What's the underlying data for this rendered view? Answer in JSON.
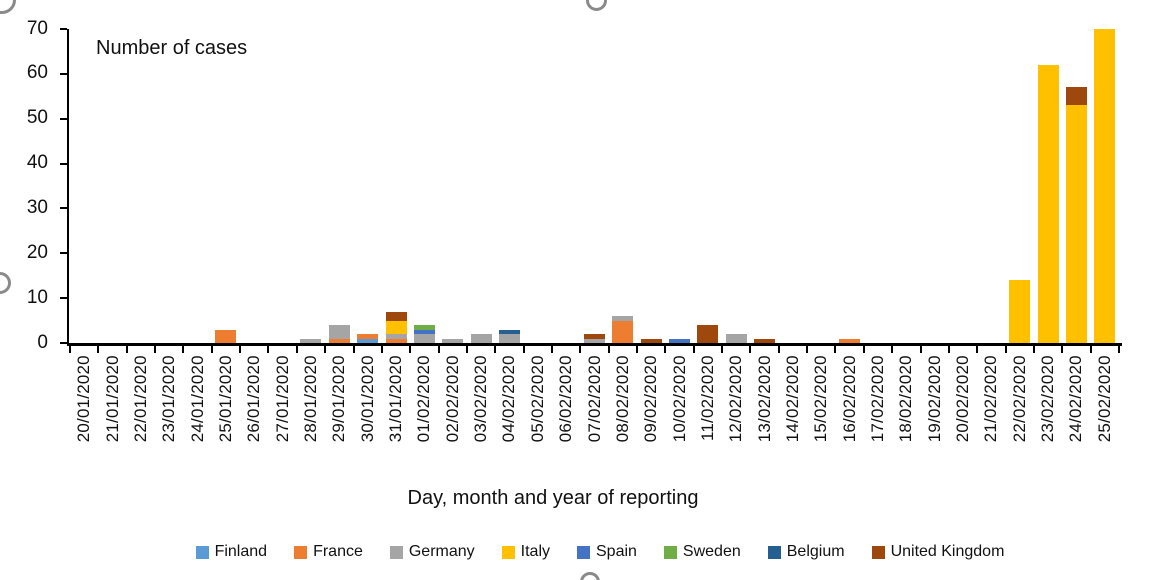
{
  "chart_data": {
    "type": "bar",
    "stacked": true,
    "inner_label": "Number of cases",
    "xlabel": "Day, month and year of reporting",
    "ylabel": "",
    "ylim": [
      0,
      70
    ],
    "yticks": [
      0,
      10,
      20,
      30,
      40,
      50,
      60,
      70
    ],
    "grid": false,
    "legend_position": "bottom",
    "categories": [
      "20/01/2020",
      "21/01/2020",
      "22/01/2020",
      "23/01/2020",
      "24/01/2020",
      "25/01/2020",
      "26/01/2020",
      "27/01/2020",
      "28/01/2020",
      "29/01/2020",
      "30/01/2020",
      "31/01/2020",
      "01/02/2020",
      "02/02/2020",
      "03/02/2020",
      "04/02/2020",
      "05/02/2020",
      "06/02/2020",
      "07/02/2020",
      "08/02/2020",
      "09/02/2020",
      "10/02/2020",
      "11/02/2020",
      "12/02/2020",
      "13/02/2020",
      "14/02/2020",
      "15/02/2020",
      "16/02/2020",
      "17/02/2020",
      "18/02/2020",
      "19/02/2020",
      "20/02/2020",
      "21/02/2020",
      "22/02/2020",
      "23/02/2020",
      "24/02/2020",
      "25/02/2020"
    ],
    "series": [
      {
        "name": "Finland",
        "color": "#5B9BD5",
        "values": [
          0,
          0,
          0,
          0,
          0,
          0,
          0,
          0,
          0,
          0,
          1,
          0,
          0,
          0,
          0,
          0,
          0,
          0,
          0,
          0,
          0,
          0,
          0,
          0,
          0,
          0,
          0,
          0,
          0,
          0,
          0,
          0,
          0,
          0,
          0,
          0,
          0
        ]
      },
      {
        "name": "France",
        "color": "#ED7D31",
        "values": [
          0,
          0,
          0,
          0,
          0,
          3,
          0,
          0,
          0,
          1,
          1,
          1,
          0,
          0,
          0,
          0,
          0,
          0,
          0,
          5,
          0,
          0,
          0,
          0,
          0,
          0,
          0,
          1,
          0,
          0,
          0,
          0,
          0,
          0,
          0,
          0,
          0
        ]
      },
      {
        "name": "Germany",
        "color": "#A5A5A5",
        "values": [
          0,
          0,
          0,
          0,
          0,
          0,
          0,
          0,
          1,
          3,
          0,
          1,
          2,
          1,
          2,
          2,
          0,
          0,
          1,
          1,
          0,
          0,
          0,
          2,
          0,
          0,
          0,
          0,
          0,
          0,
          0,
          0,
          0,
          0,
          0,
          0,
          0
        ]
      },
      {
        "name": "Italy",
        "color": "#FFC000",
        "values": [
          0,
          0,
          0,
          0,
          0,
          0,
          0,
          0,
          0,
          0,
          0,
          3,
          0,
          0,
          0,
          0,
          0,
          0,
          0,
          0,
          0,
          0,
          0,
          0,
          0,
          0,
          0,
          0,
          0,
          0,
          0,
          0,
          0,
          14,
          62,
          53,
          70
        ]
      },
      {
        "name": "Spain",
        "color": "#4472C4",
        "values": [
          0,
          0,
          0,
          0,
          0,
          0,
          0,
          0,
          0,
          0,
          0,
          0,
          1,
          0,
          0,
          0,
          0,
          0,
          0,
          0,
          0,
          1,
          0,
          0,
          0,
          0,
          0,
          0,
          0,
          0,
          0,
          0,
          0,
          0,
          0,
          0,
          0
        ]
      },
      {
        "name": "Sweden",
        "color": "#70AD47",
        "values": [
          0,
          0,
          0,
          0,
          0,
          0,
          0,
          0,
          0,
          0,
          0,
          0,
          1,
          0,
          0,
          0,
          0,
          0,
          0,
          0,
          0,
          0,
          0,
          0,
          0,
          0,
          0,
          0,
          0,
          0,
          0,
          0,
          0,
          0,
          0,
          0,
          0
        ]
      },
      {
        "name": "Belgium",
        "color": "#255E91",
        "values": [
          0,
          0,
          0,
          0,
          0,
          0,
          0,
          0,
          0,
          0,
          0,
          0,
          0,
          0,
          0,
          1,
          0,
          0,
          0,
          0,
          0,
          0,
          0,
          0,
          0,
          0,
          0,
          0,
          0,
          0,
          0,
          0,
          0,
          0,
          0,
          0,
          0
        ]
      },
      {
        "name": "United Kingdom",
        "color": "#9E480E",
        "values": [
          0,
          0,
          0,
          0,
          0,
          0,
          0,
          0,
          0,
          0,
          0,
          2,
          0,
          0,
          0,
          0,
          0,
          0,
          1,
          0,
          1,
          0,
          4,
          0,
          1,
          0,
          0,
          0,
          0,
          0,
          0,
          0,
          0,
          0,
          0,
          4,
          0
        ]
      }
    ]
  }
}
